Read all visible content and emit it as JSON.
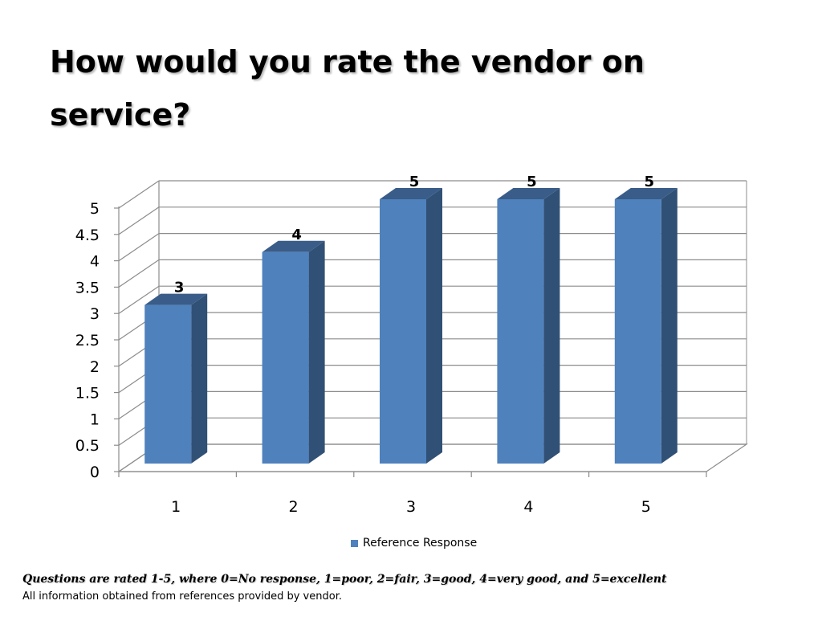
{
  "slide": {
    "title": "How would you rate the vendor on service?",
    "note": "Questions are rated 1-5, where 0=No response, 1=poor, 2=fair, 3=good, 4=very good, and 5=excellent",
    "source": "All information obtained from references provided by vendor."
  },
  "chart_data": {
    "type": "bar",
    "style": "3d-column",
    "categories": [
      "1",
      "2",
      "3",
      "4",
      "5"
    ],
    "series": [
      {
        "name": "Reference Response",
        "values": [
          3,
          4,
          5,
          5,
          5
        ],
        "color": "#4f81bd"
      }
    ],
    "ylim": [
      0,
      5
    ],
    "yticks": [
      "0",
      "0.5",
      "1",
      "1.5",
      "2",
      "2.5",
      "3",
      "3.5",
      "4",
      "4.5",
      "5"
    ],
    "ytick_values": [
      0,
      0.5,
      1,
      1.5,
      2,
      2.5,
      3,
      3.5,
      4,
      4.5,
      5
    ],
    "data_labels": [
      "3",
      "4",
      "5",
      "5",
      "5"
    ],
    "grid": true,
    "legend": "bottom"
  }
}
